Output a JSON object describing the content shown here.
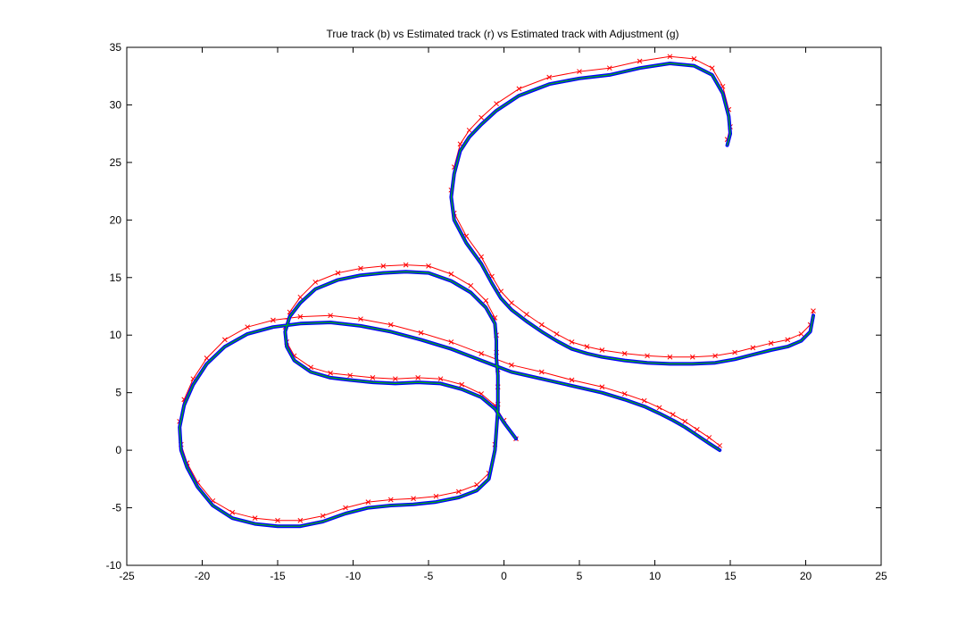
{
  "chart_data": {
    "type": "line",
    "title": "True track (b) vs Estimated track (r) vs Estimated track with Adjustment (g)",
    "xlabel": "",
    "ylabel": "",
    "xlim": [
      -25,
      25
    ],
    "ylim": [
      -10,
      35
    ],
    "xticks": [
      -25,
      -20,
      -15,
      -10,
      -5,
      0,
      5,
      10,
      15,
      20,
      25
    ],
    "yticks": [
      -10,
      -5,
      0,
      5,
      10,
      15,
      20,
      25,
      30,
      35
    ],
    "grid": false,
    "legend": "none",
    "series": [
      {
        "name": "True track (b)",
        "color": "#0000ff",
        "marker": "none",
        "x": [
          0.8,
          0.0,
          -0.6,
          -1.5,
          -2.8,
          -4.2,
          -5.7,
          -7.2,
          -8.7,
          -10.2,
          -11.5,
          -12.8,
          -13.9,
          -14.4,
          -14.5,
          -14.2,
          -13.5,
          -12.5,
          -11.0,
          -9.5,
          -8.0,
          -6.5,
          -5.0,
          -3.5,
          -2.2,
          -1.2,
          -0.6,
          -0.5,
          -0.5,
          -0.4,
          -0.4,
          -0.4,
          -0.6,
          -1.0,
          -1.8,
          -3.0,
          -4.5,
          -6.0,
          -7.5,
          -9.0,
          -10.5,
          -12.0,
          -13.5,
          -15.0,
          -16.5,
          -18.0,
          -19.3,
          -20.3,
          -21.0,
          -21.4,
          -21.5,
          -21.2,
          -20.6,
          -19.7,
          -18.5,
          -17.0,
          -15.3,
          -13.5,
          -11.5,
          -9.5,
          -7.5,
          -5.5,
          -3.5,
          -1.5,
          0.5,
          2.5,
          4.5,
          6.5,
          8.0,
          9.3,
          10.3,
          11.2,
          12.0,
          12.8,
          13.6,
          14.3,
          14.8,
          15.0,
          14.9,
          14.5,
          13.8,
          12.6,
          11.0,
          9.0,
          7.0,
          5.0,
          3.0,
          1.0,
          -0.5,
          -1.5,
          -2.3,
          -2.9,
          -3.3,
          -3.5,
          -3.3,
          -2.5,
          -1.5,
          -0.8,
          -0.2,
          0.5,
          1.5,
          2.5,
          3.5,
          4.5,
          5.5,
          6.5,
          8.0,
          9.5,
          11.0,
          12.5,
          14.0,
          15.3,
          16.5,
          17.7,
          18.8,
          19.7,
          20.3,
          20.5
        ],
        "y": [
          1.0,
          2.4,
          3.6,
          4.6,
          5.3,
          5.8,
          5.9,
          5.8,
          5.9,
          6.1,
          6.3,
          6.8,
          7.8,
          9.0,
          10.3,
          11.6,
          12.8,
          14.0,
          14.8,
          15.2,
          15.4,
          15.5,
          15.4,
          14.7,
          13.7,
          12.4,
          11.0,
          9.5,
          8.0,
          6.5,
          5.0,
          3.5,
          0.0,
          -2.5,
          -3.5,
          -4.1,
          -4.5,
          -4.7,
          -4.8,
          -5.0,
          -5.5,
          -6.2,
          -6.6,
          -6.6,
          -6.4,
          -5.9,
          -4.8,
          -3.2,
          -1.5,
          0.0,
          2.0,
          3.9,
          5.7,
          7.5,
          9.0,
          10.1,
          10.7,
          11.0,
          11.1,
          10.8,
          10.3,
          9.6,
          8.8,
          7.8,
          6.8,
          6.2,
          5.6,
          5.0,
          4.4,
          3.8,
          3.2,
          2.6,
          2.0,
          1.3,
          0.6,
          0.0,
          26.5,
          27.5,
          29.0,
          31.0,
          32.6,
          33.4,
          33.6,
          33.2,
          32.6,
          32.3,
          31.8,
          30.8,
          29.5,
          28.3,
          27.2,
          26.0,
          24.0,
          22.0,
          20.0,
          18.0,
          16.2,
          14.5,
          13.2,
          12.2,
          11.2,
          10.3,
          9.5,
          8.8,
          8.4,
          8.1,
          7.8,
          7.6,
          7.5,
          7.5,
          7.6,
          7.9,
          8.3,
          8.7,
          9.0,
          9.5,
          10.3,
          11.7
        ]
      },
      {
        "name": "Estimated track (r)",
        "color": "#ff0000",
        "marker": "x",
        "x": [
          0.8,
          0.0,
          -0.6,
          -1.5,
          -2.8,
          -4.2,
          -5.7,
          -7.2,
          -8.7,
          -10.2,
          -11.5,
          -12.8,
          -13.9,
          -14.4,
          -14.5,
          -14.2,
          -13.5,
          -12.5,
          -11.0,
          -9.5,
          -8.0,
          -6.5,
          -5.0,
          -3.5,
          -2.2,
          -1.2,
          -0.6,
          -0.5,
          -0.5,
          -0.4,
          -0.4,
          -0.4,
          -0.6,
          -1.0,
          -1.8,
          -3.0,
          -4.5,
          -6.0,
          -7.5,
          -9.0,
          -10.5,
          -12.0,
          -13.5,
          -15.0,
          -16.5,
          -18.0,
          -19.3,
          -20.3,
          -21.0,
          -21.4,
          -21.5,
          -21.2,
          -20.6,
          -19.7,
          -18.5,
          -17.0,
          -15.3,
          -13.5,
          -11.5,
          -9.5,
          -7.5,
          -5.5,
          -3.5,
          -1.5,
          0.5,
          2.5,
          4.5,
          6.5,
          8.0,
          9.3,
          10.3,
          11.2,
          12.0,
          12.8,
          13.6,
          14.3,
          14.8,
          15.0,
          14.9,
          14.5,
          13.8,
          12.6,
          11.0,
          9.0,
          7.0,
          5.0,
          3.0,
          1.0,
          -0.5,
          -1.5,
          -2.3,
          -2.9,
          -3.3,
          -3.5,
          -3.3,
          -2.5,
          -1.5,
          -0.8,
          -0.2,
          0.5,
          1.5,
          2.5,
          3.5,
          4.5,
          5.5,
          6.5,
          8.0,
          9.5,
          11.0,
          12.5,
          14.0,
          15.3,
          16.5,
          17.7,
          18.8,
          19.7,
          20.3,
          20.5
        ],
        "y": [
          1.0,
          2.6,
          3.9,
          4.9,
          5.7,
          6.2,
          6.3,
          6.2,
          6.3,
          6.5,
          6.7,
          7.2,
          8.2,
          9.4,
          10.7,
          12.0,
          13.3,
          14.6,
          15.4,
          15.8,
          16.0,
          16.1,
          16.0,
          15.3,
          14.3,
          13.0,
          11.5,
          10.0,
          8.5,
          7.0,
          5.5,
          4.0,
          0.5,
          -2.0,
          -3.0,
          -3.6,
          -4.0,
          -4.2,
          -4.3,
          -4.5,
          -5.0,
          -5.7,
          -6.1,
          -6.1,
          -5.9,
          -5.4,
          -4.4,
          -2.8,
          -1.1,
          0.5,
          2.5,
          4.4,
          6.2,
          8.0,
          9.6,
          10.7,
          11.3,
          11.6,
          11.7,
          11.4,
          10.9,
          10.2,
          9.4,
          8.4,
          7.4,
          6.8,
          6.1,
          5.5,
          4.9,
          4.3,
          3.7,
          3.1,
          2.5,
          1.8,
          1.1,
          0.4,
          27.0,
          28.1,
          29.6,
          31.6,
          33.2,
          34.0,
          34.2,
          33.8,
          33.2,
          32.9,
          32.4,
          31.4,
          30.1,
          28.9,
          27.8,
          26.6,
          24.6,
          22.6,
          20.6,
          18.6,
          16.8,
          15.1,
          13.8,
          12.8,
          11.8,
          10.9,
          10.1,
          9.4,
          9.0,
          8.7,
          8.4,
          8.2,
          8.1,
          8.1,
          8.2,
          8.5,
          8.9,
          9.3,
          9.6,
          10.1,
          10.9,
          12.1
        ]
      },
      {
        "name": "Estimated track with Adjustment (g)",
        "color": "#00c000",
        "marker": "none",
        "x": [
          0.8,
          0.0,
          -0.6,
          -1.5,
          -2.8,
          -4.2,
          -5.7,
          -7.2,
          -8.7,
          -10.2,
          -11.5,
          -12.8,
          -13.9,
          -14.4,
          -14.5,
          -14.2,
          -13.5,
          -12.5,
          -11.0,
          -9.5,
          -8.0,
          -6.5,
          -5.0,
          -3.5,
          -2.2,
          -1.2,
          -0.6,
          -0.5,
          -0.5,
          -0.4,
          -0.4,
          -0.4,
          -0.6,
          -1.0,
          -1.8,
          -3.0,
          -4.5,
          -6.0,
          -7.5,
          -9.0,
          -10.5,
          -12.0,
          -13.5,
          -15.0,
          -16.5,
          -18.0,
          -19.3,
          -20.3,
          -21.0,
          -21.4,
          -21.5,
          -21.2,
          -20.6,
          -19.7,
          -18.5,
          -17.0,
          -15.3,
          -13.5,
          -11.5,
          -9.5,
          -7.5,
          -5.5,
          -3.5,
          -1.5,
          0.5,
          2.5,
          4.5,
          6.5,
          8.0,
          9.3,
          10.3,
          11.2,
          12.0,
          12.8,
          13.6,
          14.3,
          14.8,
          15.0,
          14.9,
          14.5,
          13.8,
          12.6,
          11.0,
          9.0,
          7.0,
          5.0,
          3.0,
          1.0,
          -0.5,
          -1.5,
          -2.3,
          -2.9,
          -3.3,
          -3.5,
          -3.3,
          -2.5,
          -1.5,
          -0.8,
          -0.2,
          0.5,
          1.5,
          2.5,
          3.5,
          4.5,
          5.5,
          6.5,
          8.0,
          9.5,
          11.0,
          12.5,
          14.0,
          15.3,
          16.5,
          17.7,
          18.8,
          19.7,
          20.3,
          20.5
        ],
        "y": [
          1.0,
          2.4,
          3.6,
          4.6,
          5.3,
          5.8,
          5.9,
          5.8,
          5.9,
          6.1,
          6.3,
          6.8,
          7.8,
          9.0,
          10.3,
          11.6,
          12.8,
          14.0,
          14.8,
          15.2,
          15.4,
          15.5,
          15.4,
          14.7,
          13.7,
          12.4,
          11.0,
          9.5,
          8.0,
          6.5,
          5.0,
          3.5,
          0.0,
          -2.5,
          -3.5,
          -4.1,
          -4.5,
          -4.7,
          -4.8,
          -5.0,
          -5.5,
          -6.2,
          -6.6,
          -6.6,
          -6.4,
          -5.9,
          -4.8,
          -3.2,
          -1.5,
          0.0,
          2.0,
          3.9,
          5.7,
          7.5,
          9.0,
          10.1,
          10.7,
          11.0,
          11.1,
          10.8,
          10.3,
          9.6,
          8.8,
          7.8,
          6.8,
          6.2,
          5.6,
          5.0,
          4.4,
          3.8,
          3.2,
          2.6,
          2.0,
          1.3,
          0.6,
          0.0,
          26.5,
          27.5,
          29.0,
          31.0,
          32.6,
          33.4,
          33.6,
          33.2,
          32.6,
          32.3,
          31.8,
          30.8,
          29.5,
          28.3,
          27.2,
          26.0,
          24.0,
          22.0,
          20.0,
          18.0,
          16.2,
          14.5,
          13.2,
          12.2,
          11.2,
          10.3,
          9.5,
          8.8,
          8.4,
          8.1,
          7.8,
          7.6,
          7.5,
          7.5,
          7.6,
          7.9,
          8.3,
          8.7,
          9.0,
          9.5,
          10.3,
          11.7
        ]
      }
    ]
  }
}
